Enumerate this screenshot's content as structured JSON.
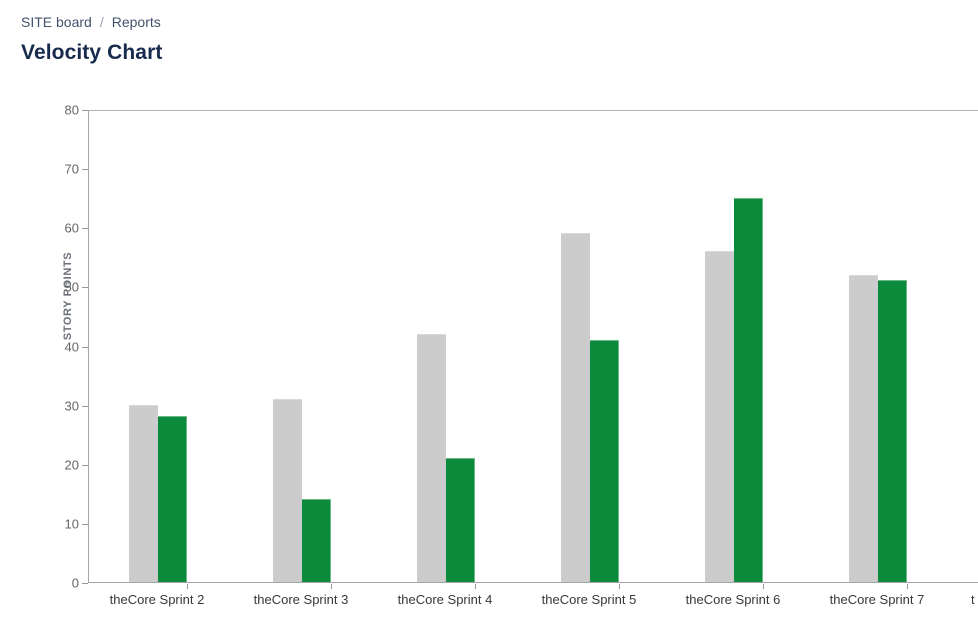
{
  "breadcrumb": {
    "items": [
      {
        "label": "SITE board"
      },
      {
        "label": "Reports"
      }
    ],
    "separator": "/"
  },
  "page_title": "Velocity Chart",
  "chart_data": {
    "type": "bar",
    "title": "Velocity Chart",
    "xlabel": "",
    "ylabel": "STORY POINTS",
    "ylim": [
      0,
      80
    ],
    "ytick_step": 10,
    "grid": false,
    "legend_position": "none",
    "categories": [
      "theCore Sprint 2",
      "theCore Sprint 3",
      "theCore Sprint 4",
      "theCore Sprint 5",
      "theCore Sprint 6",
      "theCore Sprint 7"
    ],
    "series": [
      {
        "name": "gray-bars",
        "color": "#cccccc",
        "values": [
          30,
          31,
          42,
          59,
          56,
          52
        ]
      },
      {
        "name": "green-bars",
        "color": "#0b8a3c",
        "values": [
          28,
          14,
          21,
          41,
          65,
          51
        ]
      }
    ],
    "partial_next_category_label": "t"
  }
}
